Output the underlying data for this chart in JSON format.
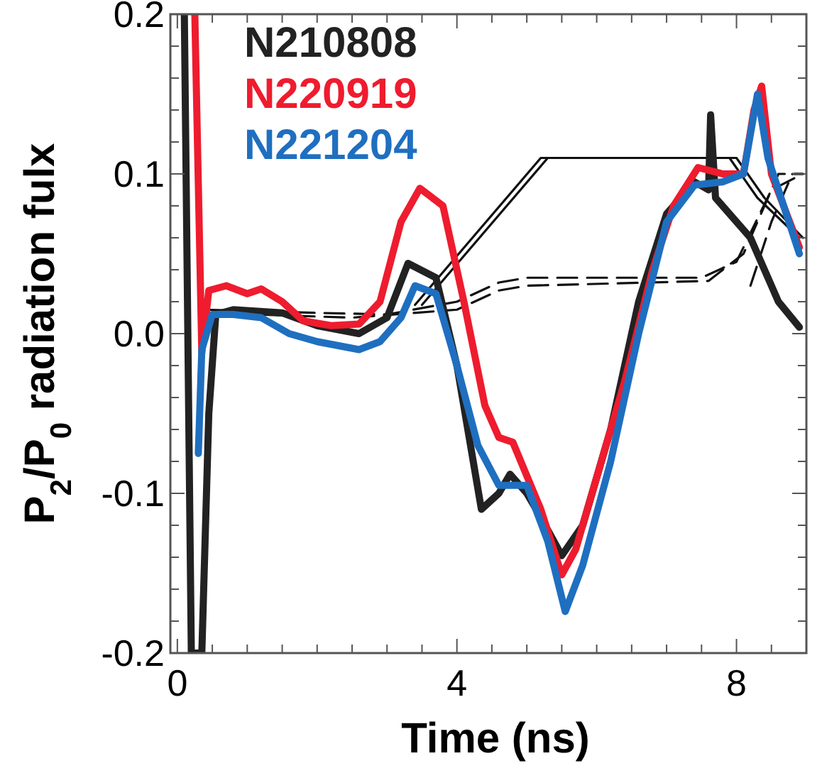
{
  "chart_data": {
    "type": "line",
    "xlabel": "Time (ns)",
    "ylabel": "P$_{2}$/P$_{0}$ radiation fulx",
    "xlim": [
      -0.1,
      9.0
    ],
    "ylim": [
      -0.2,
      0.2
    ],
    "xticks": [
      {
        "value": 0,
        "label": "0"
      },
      {
        "value": 0.5,
        "label": null
      },
      {
        "value": 1,
        "label": null
      },
      {
        "value": 1.5,
        "label": null
      },
      {
        "value": 2,
        "label": null
      },
      {
        "value": 2.5,
        "label": null
      },
      {
        "value": 3,
        "label": null
      },
      {
        "value": 3.5,
        "label": null
      },
      {
        "value": 4,
        "label": "4"
      },
      {
        "value": 4.5,
        "label": null
      },
      {
        "value": 5,
        "label": null
      },
      {
        "value": 5.5,
        "label": null
      },
      {
        "value": 6,
        "label": null
      },
      {
        "value": 6.5,
        "label": null
      },
      {
        "value": 7,
        "label": null
      },
      {
        "value": 7.5,
        "label": null
      },
      {
        "value": 8,
        "label": "8"
      },
      {
        "value": 8.5,
        "label": null
      }
    ],
    "yticks": [
      {
        "value": -0.2,
        "label": "-0.2"
      },
      {
        "value": -0.18,
        "label": null
      },
      {
        "value": -0.16,
        "label": null
      },
      {
        "value": -0.14,
        "label": null
      },
      {
        "value": -0.12,
        "label": null
      },
      {
        "value": -0.1,
        "label": "-0.1"
      },
      {
        "value": -0.08,
        "label": null
      },
      {
        "value": -0.06,
        "label": null
      },
      {
        "value": -0.04,
        "label": null
      },
      {
        "value": -0.02,
        "label": null
      },
      {
        "value": 0,
        "label": "0.0"
      },
      {
        "value": 0.02,
        "label": null
      },
      {
        "value": 0.04,
        "label": null
      },
      {
        "value": 0.06,
        "label": null
      },
      {
        "value": 0.08,
        "label": null
      },
      {
        "value": 0.1,
        "label": "0.1"
      },
      {
        "value": 0.12,
        "label": null
      },
      {
        "value": 0.14,
        "label": null
      },
      {
        "value": 0.16,
        "label": null
      },
      {
        "value": 0.18,
        "label": null
      },
      {
        "value": 0.2,
        "label": "0.2"
      }
    ],
    "grid": false,
    "legend": "top left",
    "marker": "none",
    "series": [
      {
        "color": "#111111",
        "line_style": "solid",
        "x": [
          3.4,
          5.2,
          7.9,
          8.3,
          8.9
        ],
        "values": [
          0.018,
          0.11,
          0.11,
          0.085,
          0.06
        ]
      },
      {
        "color": "#111111",
        "line_style": "solid",
        "x": [
          3.5,
          5.3,
          8.0,
          8.4,
          8.95
        ],
        "values": [
          0.018,
          0.11,
          0.11,
          0.085,
          0.06
        ]
      },
      {
        "color": "#111111",
        "line_style": "dashed",
        "x": [
          0.4,
          2.0,
          3.0,
          4.0,
          4.6,
          5.0,
          7.5,
          8.0,
          8.5,
          8.95
        ],
        "values": [
          0.015,
          0.013,
          0.012,
          0.02,
          0.032,
          0.035,
          0.035,
          0.045,
          0.09,
          0.1
        ]
      },
      {
        "color": "#111111",
        "line_style": "dashed",
        "x": [
          0.4,
          2.5,
          4.0,
          4.6,
          5.0,
          7.6,
          8.1,
          8.6,
          8.95
        ],
        "values": [
          0.013,
          0.01,
          0.015,
          0.027,
          0.03,
          0.033,
          0.05,
          0.1,
          0.1
        ]
      },
      {
        "color": "#111111",
        "line_style": "dashed",
        "x": [
          8.2,
          8.5,
          8.8,
          8.95
        ],
        "values": [
          0.03,
          0.07,
          0.1,
          0.1
        ]
      },
      {
        "name": "N210808",
        "color": "#222222",
        "line_style": "solid",
        "x": [
          0.1,
          0.2,
          0.35,
          0.45,
          0.55,
          0.8,
          1.5,
          2.0,
          2.6,
          3.0,
          3.3,
          3.7,
          4.0,
          4.35,
          4.6,
          4.76,
          5.0,
          5.2,
          5.5,
          5.8,
          6.2,
          6.6,
          7.0,
          7.4,
          7.6,
          7.63,
          7.7,
          8.2,
          8.6,
          8.9
        ],
        "values": [
          0.2,
          -0.2,
          -0.2,
          -0.05,
          0.012,
          0.015,
          0.013,
          0.005,
          0.0,
          0.01,
          0.044,
          0.035,
          -0.02,
          -0.11,
          -0.1,
          -0.088,
          -0.1,
          -0.115,
          -0.139,
          -0.12,
          -0.06,
          0.02,
          0.075,
          0.095,
          0.09,
          0.137,
          0.085,
          0.06,
          0.02,
          0.004
        ]
      },
      {
        "name": "N220919",
        "color": "#ee1c2e",
        "line_style": "solid",
        "x": [
          0.25,
          0.35,
          0.45,
          0.7,
          1.0,
          1.2,
          1.5,
          1.8,
          2.2,
          2.6,
          2.9,
          3.2,
          3.47,
          3.8,
          4.1,
          4.4,
          4.6,
          4.8,
          5.2,
          5.5,
          5.7,
          6.0,
          6.4,
          6.8,
          7.1,
          7.45,
          7.8,
          8.1,
          8.25,
          8.36,
          8.5,
          8.9
        ],
        "values": [
          0.2,
          -0.012,
          0.027,
          0.03,
          0.025,
          0.028,
          0.02,
          0.008,
          0.005,
          0.006,
          0.02,
          0.07,
          0.091,
          0.08,
          0.02,
          -0.045,
          -0.065,
          -0.068,
          -0.11,
          -0.151,
          -0.135,
          -0.09,
          -0.03,
          0.04,
          0.08,
          0.104,
          0.1,
          0.1,
          0.14,
          0.155,
          0.1,
          0.054
        ]
      },
      {
        "name": "N221204",
        "color": "#1f6fc0",
        "line_style": "solid",
        "x": [
          0.3,
          0.35,
          0.5,
          0.8,
          1.2,
          1.6,
          2.0,
          2.6,
          2.9,
          3.2,
          3.4,
          3.7,
          4.0,
          4.3,
          4.6,
          5.0,
          5.3,
          5.55,
          5.8,
          6.2,
          6.6,
          7.0,
          7.4,
          7.8,
          8.1,
          8.3,
          8.45,
          8.9
        ],
        "values": [
          -0.075,
          -0.01,
          0.012,
          0.012,
          0.01,
          0.0,
          -0.005,
          -0.01,
          -0.005,
          0.01,
          0.03,
          0.025,
          -0.02,
          -0.07,
          -0.095,
          -0.095,
          -0.13,
          -0.174,
          -0.145,
          -0.08,
          0.0,
          0.07,
          0.093,
          0.095,
          0.1,
          0.15,
          0.11,
          0.05
        ]
      }
    ]
  }
}
